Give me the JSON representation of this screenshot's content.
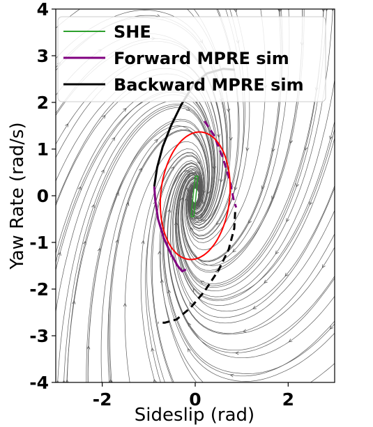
{
  "chart_data": {
    "type": "line",
    "title": "",
    "xlabel": "Sideslip (rad)",
    "ylabel": "Yaw Rate (rad/s)",
    "xlim": [
      -3,
      3
    ],
    "ylim": [
      -4,
      4
    ],
    "xticks": [
      -2,
      0,
      2
    ],
    "yticks": [
      4,
      3,
      2,
      1,
      0,
      -1,
      -2,
      -3,
      -4
    ],
    "legend_position": "top",
    "background": "streamplot of the system vector field (gray streamlines with arrowheads)",
    "series": [
      {
        "name": "SHE",
        "color": "#2ca02c",
        "style": "thin outline",
        "points": [
          [
            -0.09,
            -0.45
          ],
          [
            0.0,
            0.42
          ],
          [
            0.06,
            0.42
          ],
          [
            -0.03,
            -0.45
          ],
          [
            -0.09,
            -0.45
          ]
        ]
      },
      {
        "name": "Forward MPRE sim",
        "color": "#800080",
        "style": "solid",
        "points": [
          [
            -0.88,
            0.2
          ],
          [
            -0.86,
            -0.1
          ],
          [
            -0.8,
            -0.5
          ],
          [
            -0.68,
            -0.9
          ],
          [
            -0.52,
            -1.25
          ],
          [
            -0.38,
            -1.5
          ],
          [
            -0.28,
            -1.62
          ],
          [
            -0.2,
            -1.58
          ]
        ]
      },
      {
        "name": "Forward MPRE sim",
        "color": "#800080",
        "style": "dashed",
        "points": [
          [
            0.2,
            1.6
          ],
          [
            0.4,
            1.3
          ],
          [
            0.6,
            0.8
          ],
          [
            0.75,
            0.3
          ],
          [
            0.83,
            -0.1
          ],
          [
            0.88,
            -0.25
          ]
        ]
      },
      {
        "name": "Backward MPRE sim",
        "color": "#000000",
        "style": "solid",
        "points": [
          [
            -0.88,
            0.2
          ],
          [
            -0.82,
            0.6
          ],
          [
            -0.7,
            1.05
          ],
          [
            -0.52,
            1.5
          ],
          [
            -0.3,
            1.95
          ],
          [
            -0.02,
            2.4
          ],
          [
            0.25,
            2.62
          ],
          [
            0.6,
            2.72
          ],
          [
            0.85,
            2.7
          ]
        ]
      },
      {
        "name": "Backward MPRE sim",
        "color": "#000000",
        "style": "dashed",
        "points": [
          [
            0.86,
            -0.35
          ],
          [
            0.84,
            -0.7
          ],
          [
            0.72,
            -1.15
          ],
          [
            0.5,
            -1.6
          ],
          [
            0.2,
            -2.05
          ],
          [
            -0.1,
            -2.4
          ],
          [
            -0.4,
            -2.65
          ],
          [
            -0.65,
            -2.72
          ],
          [
            -0.8,
            -2.72
          ]
        ]
      },
      {
        "name": "",
        "color": "#ff0000",
        "style": "ellipse",
        "ellipse": {
          "cx": 0.0,
          "cy": 0.0,
          "semi_major": 1.4,
          "semi_minor": 0.75,
          "angle_deg": -15
        }
      }
    ],
    "legend": [
      {
        "label": "SHE",
        "color": "#2ca02c"
      },
      {
        "label": "Forward MPRE sim",
        "color": "#800080"
      },
      {
        "label": "Backward MPRE sim",
        "color": "#000000"
      }
    ]
  },
  "colors": {
    "axes": "#000000",
    "streamlines": "#5a5a5a",
    "background": "#ffffff"
  }
}
